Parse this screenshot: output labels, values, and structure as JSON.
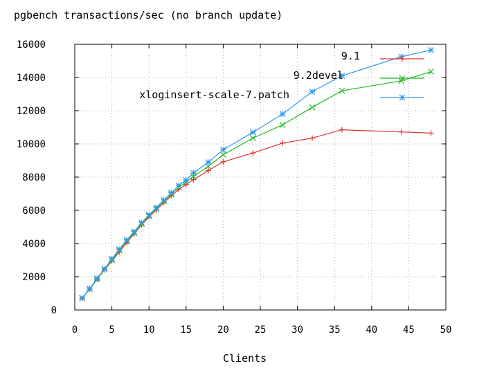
{
  "chart_data": {
    "type": "line",
    "title": "pgbench transactions/sec (no branch update)",
    "xlabel": "Clients",
    "ylabel": "",
    "xlim": [
      0,
      50
    ],
    "ylim": [
      0,
      16000
    ],
    "xticks": [
      0,
      5,
      10,
      15,
      20,
      25,
      30,
      35,
      40,
      45,
      50
    ],
    "yticks": [
      0,
      2000,
      4000,
      6000,
      8000,
      10000,
      12000,
      14000,
      16000
    ],
    "grid": true,
    "legend_position": "top-right",
    "series": [
      {
        "name": "9.1",
        "color": "#e03030",
        "marker": "plus",
        "x": [
          1,
          2,
          3,
          4,
          5,
          6,
          7,
          8,
          9,
          10,
          11,
          12,
          13,
          14,
          15,
          16,
          18,
          20,
          24,
          28,
          32,
          36,
          44,
          48
        ],
        "y": [
          700,
          1250,
          1850,
          2420,
          2950,
          3500,
          4050,
          4580,
          5120,
          5600,
          6020,
          6460,
          6880,
          7250,
          7550,
          7850,
          8400,
          8920,
          9450,
          10050,
          10350,
          10850,
          10720,
          10650
        ]
      },
      {
        "name": "9.2devel",
        "color": "#22bb22",
        "marker": "cross",
        "x": [
          1,
          2,
          3,
          4,
          5,
          6,
          7,
          8,
          9,
          10,
          11,
          12,
          13,
          14,
          15,
          16,
          18,
          20,
          24,
          28,
          32,
          36,
          44,
          48
        ],
        "y": [
          700,
          1250,
          1850,
          2450,
          3000,
          3580,
          4120,
          4640,
          5180,
          5660,
          6090,
          6540,
          6960,
          7380,
          7700,
          8050,
          8650,
          9350,
          10350,
          11150,
          12200,
          13200,
          13800,
          14350
        ]
      },
      {
        "name": "xloginsert-scale-7.patch",
        "color": "#3399ee",
        "marker": "star",
        "x": [
          1,
          2,
          3,
          4,
          5,
          6,
          7,
          8,
          9,
          10,
          11,
          12,
          13,
          14,
          15,
          16,
          18,
          20,
          24,
          28,
          32,
          36,
          44,
          48
        ],
        "y": [
          720,
          1280,
          1900,
          2480,
          3080,
          3650,
          4220,
          4720,
          5250,
          5730,
          6170,
          6620,
          7050,
          7500,
          7820,
          8250,
          8900,
          9650,
          10700,
          11800,
          13150,
          14100,
          15250,
          15650
        ]
      }
    ]
  }
}
